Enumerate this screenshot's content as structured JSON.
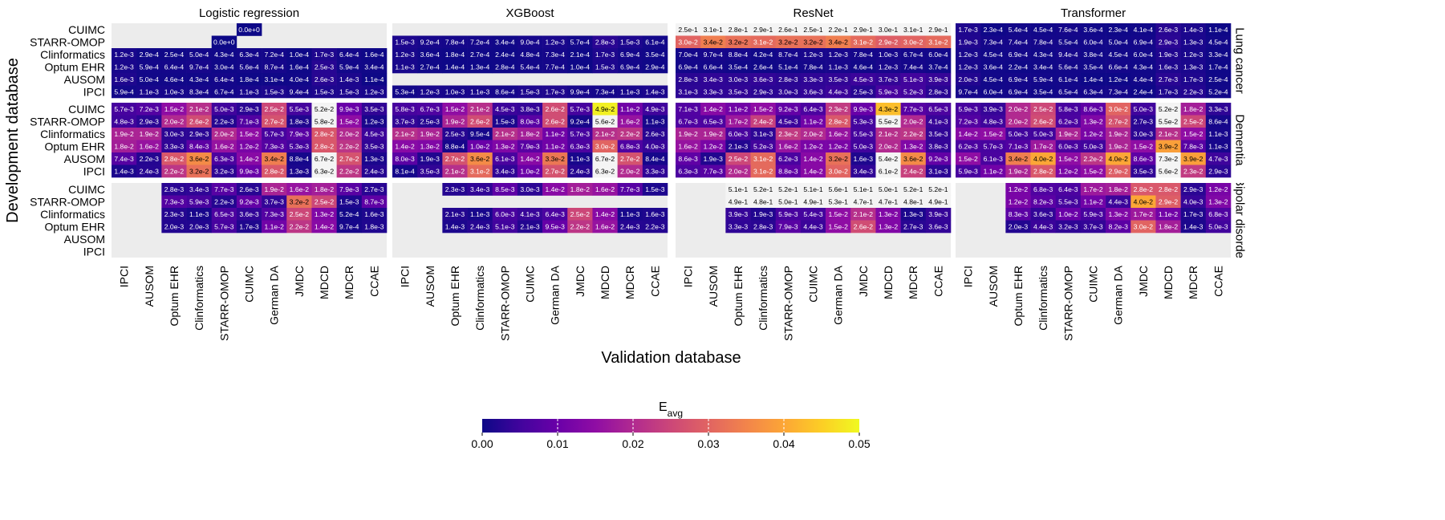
{
  "chart_data": {
    "type": "heatmap",
    "xlabel": "Validation database",
    "ylabel": "Development database",
    "colorbar": {
      "label": "E",
      "label_subscript": "avg",
      "range": [
        0,
        0.05
      ],
      "ticks": [
        "0.00",
        "0.01",
        "0.02",
        "0.03",
        "0.04",
        "0.05"
      ],
      "colormap": "plasma"
    },
    "models": [
      "Logistic regression",
      "XGBoost",
      "ResNet",
      "Transformer"
    ],
    "outcomes": [
      "Lung cancer",
      "Dementia",
      "Bipolar disorder"
    ],
    "development_databases": [
      "CUIMC",
      "STARR-OMOP",
      "Clinformatics",
      "Optum EHR",
      "AUSOM",
      "IPCI"
    ],
    "validation_databases": [
      "IPCI",
      "AUSOM",
      "Optum EHR",
      "Clinformatics",
      "STARR-OMOP",
      "CUIMC",
      "German DA",
      "JMDC",
      "MDCD",
      "MDCR",
      "CCAE"
    ],
    "cells": {
      "Lung cancer": {
        "Logistic regression": [
          [
            null,
            null,
            null,
            null,
            null,
            "0.0e+0",
            null,
            null,
            null,
            null,
            null
          ],
          [
            null,
            null,
            null,
            null,
            "0.0e+0",
            null,
            null,
            null,
            null,
            null,
            null
          ],
          [
            "1.2e-3",
            "2.9e-4",
            "2.5e-4",
            "5.0e-4",
            "4.3e-4",
            "6.3e-4",
            "7.2e-4",
            "1.0e-4",
            "1.7e-3",
            "6.4e-4",
            "1.6e-4"
          ],
          [
            "1.2e-3",
            "5.9e-4",
            "6.4e-4",
            "9.7e-4",
            "3.0e-4",
            "5.6e-4",
            "8.7e-4",
            "1.6e-4",
            "2.5e-3",
            "5.9e-4",
            "3.4e-4"
          ],
          [
            "1.6e-3",
            "5.0e-4",
            "4.6e-4",
            "4.3e-4",
            "6.4e-4",
            "1.8e-4",
            "3.1e-4",
            "4.0e-4",
            "2.6e-3",
            "1.4e-3",
            "1.1e-4"
          ],
          [
            "5.9e-4",
            "1.1e-3",
            "1.0e-3",
            "8.3e-4",
            "6.7e-4",
            "1.1e-3",
            "1.5e-3",
            "9.4e-4",
            "1.5e-3",
            "1.5e-3",
            "1.2e-3"
          ]
        ],
        "XGBoost": [
          [
            null,
            null,
            null,
            null,
            null,
            null,
            null,
            null,
            null,
            null,
            null
          ],
          [
            "1.5e-3",
            "9.2e-4",
            "7.8e-4",
            "7.2e-4",
            "3.4e-4",
            "9.0e-4",
            "1.2e-3",
            "5.7e-4",
            "2.8e-3",
            "1.5e-3",
            "6.1e-4"
          ],
          [
            "1.2e-3",
            "3.6e-4",
            "1.8e-4",
            "2.7e-4",
            "2.4e-4",
            "4.8e-4",
            "7.3e-4",
            "2.1e-4",
            "1.7e-3",
            "6.9e-4",
            "3.5e-4"
          ],
          [
            "1.1e-3",
            "2.7e-4",
            "1.4e-4",
            "1.3e-4",
            "2.8e-4",
            "5.4e-4",
            "7.7e-4",
            "1.0e-4",
            "1.5e-3",
            "6.9e-4",
            "2.9e-4"
          ],
          [
            null,
            null,
            null,
            null,
            null,
            null,
            null,
            null,
            null,
            null,
            null
          ],
          [
            "5.3e-4",
            "1.2e-3",
            "1.0e-3",
            "1.1e-3",
            "8.6e-4",
            "1.5e-3",
            "1.7e-3",
            "9.9e-4",
            "7.3e-4",
            "1.1e-3",
            "1.4e-3"
          ]
        ],
        "ResNet": [
          [
            "2.5e-1",
            "3.1e-1",
            "2.8e-1",
            "2.9e-1",
            "2.6e-1",
            "2.5e-1",
            "2.2e-1",
            "2.9e-1",
            "3.0e-1",
            "3.1e-1",
            "2.9e-1"
          ],
          [
            "3.0e-2",
            "3.4e-2",
            "3.2e-2",
            "3.1e-2",
            "3.2e-2",
            "3.2e-2",
            "3.4e-2",
            "3.1e-2",
            "2.9e-2",
            "3.0e-2",
            "3.1e-2"
          ],
          [
            "7.0e-4",
            "9.7e-4",
            "8.8e-4",
            "4.2e-4",
            "8.7e-4",
            "1.2e-3",
            "1.2e-3",
            "7.8e-4",
            "1.0e-3",
            "6.7e-4",
            "6.0e-4"
          ],
          [
            "6.9e-4",
            "6.6e-4",
            "3.5e-4",
            "2.6e-4",
            "5.1e-4",
            "7.8e-4",
            "1.1e-3",
            "4.6e-4",
            "1.2e-3",
            "7.4e-4",
            "3.7e-4"
          ],
          [
            "2.8e-3",
            "3.4e-3",
            "3.0e-3",
            "3.6e-3",
            "2.8e-3",
            "3.3e-3",
            "3.5e-3",
            "4.5e-3",
            "3.7e-3",
            "5.1e-3",
            "3.9e-3"
          ],
          [
            "3.1e-3",
            "3.3e-3",
            "3.5e-3",
            "2.9e-3",
            "3.0e-3",
            "3.6e-3",
            "4.4e-3",
            "2.5e-3",
            "5.9e-3",
            "5.2e-3",
            "2.8e-3"
          ]
        ],
        "Transformer": [
          [
            "1.7e-3",
            "2.3e-4",
            "5.4e-4",
            "4.5e-4",
            "7.6e-4",
            "3.6e-4",
            "2.3e-4",
            "4.1e-4",
            "2.6e-3",
            "1.4e-3",
            "1.1e-4"
          ],
          [
            "1.9e-3",
            "7.3e-4",
            "7.4e-4",
            "7.8e-4",
            "5.5e-4",
            "6.0e-4",
            "5.0e-4",
            "6.9e-4",
            "2.9e-3",
            "1.3e-3",
            "4.5e-4"
          ],
          [
            "1.2e-3",
            "4.5e-4",
            "6.9e-4",
            "4.3e-4",
            "9.4e-4",
            "3.8e-4",
            "4.5e-4",
            "6.0e-4",
            "1.9e-3",
            "1.2e-3",
            "3.3e-4"
          ],
          [
            "1.2e-3",
            "3.6e-4",
            "2.2e-4",
            "3.4e-4",
            "5.6e-4",
            "3.5e-4",
            "6.6e-4",
            "4.3e-4",
            "1.6e-3",
            "1.3e-3",
            "1.7e-4"
          ],
          [
            "2.0e-3",
            "4.5e-4",
            "6.9e-4",
            "5.9e-4",
            "6.1e-4",
            "1.4e-4",
            "1.2e-4",
            "4.4e-4",
            "2.7e-3",
            "1.7e-3",
            "2.5e-4"
          ],
          [
            "9.7e-4",
            "6.0e-4",
            "6.9e-4",
            "3.5e-4",
            "6.5e-4",
            "6.3e-4",
            "7.3e-4",
            "2.4e-4",
            "1.7e-3",
            "2.2e-3",
            "5.2e-4"
          ]
        ]
      },
      "Dementia": {
        "Logistic regression": [
          [
            "5.7e-3",
            "7.2e-3",
            "1.5e-2",
            "2.1e-2",
            "5.0e-3",
            "2.9e-3",
            "2.5e-2",
            "5.5e-3",
            "5.2e-2",
            "9.9e-3",
            "3.5e-3"
          ],
          [
            "4.8e-3",
            "2.9e-3",
            "2.0e-2",
            "2.6e-2",
            "2.2e-3",
            "7.1e-3",
            "2.7e-2",
            "1.8e-3",
            "5.8e-2",
            "1.5e-2",
            "1.2e-3"
          ],
          [
            "1.9e-2",
            "1.9e-2",
            "3.0e-3",
            "2.9e-3",
            "2.0e-2",
            "1.5e-2",
            "5.7e-3",
            "7.9e-3",
            "2.8e-2",
            "2.0e-2",
            "4.5e-3"
          ],
          [
            "1.8e-2",
            "1.6e-2",
            "3.3e-3",
            "8.4e-3",
            "1.6e-2",
            "1.2e-2",
            "7.3e-3",
            "5.3e-3",
            "2.8e-2",
            "2.2e-2",
            "3.5e-3"
          ],
          [
            "7.4e-3",
            "2.2e-3",
            "2.8e-2",
            "3.6e-2",
            "6.3e-3",
            "1.4e-2",
            "3.4e-2",
            "8.8e-4",
            "6.7e-2",
            "2.7e-2",
            "1.3e-3"
          ],
          [
            "1.4e-3",
            "2.4e-3",
            "2.2e-2",
            "3.2e-2",
            "3.2e-3",
            "9.9e-3",
            "2.8e-2",
            "1.3e-3",
            "6.3e-2",
            "2.2e-2",
            "2.4e-3"
          ]
        ],
        "XGBoost": [
          [
            "5.8e-3",
            "6.7e-3",
            "1.5e-2",
            "2.1e-2",
            "4.5e-3",
            "3.8e-3",
            "2.6e-2",
            "5.7e-3",
            "4.9e-2",
            "1.1e-2",
            "4.9e-3"
          ],
          [
            "3.7e-3",
            "2.5e-3",
            "1.9e-2",
            "2.6e-2",
            "1.5e-3",
            "8.0e-3",
            "2.6e-2",
            "9.2e-4",
            "5.6e-2",
            "1.6e-2",
            "1.1e-3"
          ],
          [
            "2.1e-2",
            "1.9e-2",
            "2.5e-3",
            "9.5e-4",
            "2.1e-2",
            "1.8e-2",
            "1.1e-2",
            "5.7e-3",
            "2.1e-2",
            "2.2e-2",
            "2.6e-3"
          ],
          [
            "1.4e-2",
            "1.3e-2",
            "8.8e-4",
            "1.0e-2",
            "1.3e-2",
            "7.9e-3",
            "1.1e-2",
            "6.3e-3",
            "3.0e-2",
            "6.8e-3",
            "4.0e-3"
          ],
          [
            "8.0e-3",
            "1.9e-3",
            "2.7e-2",
            "3.6e-2",
            "6.1e-3",
            "1.4e-2",
            "3.3e-2",
            "1.1e-3",
            "6.7e-2",
            "2.7e-2",
            "8.4e-4"
          ],
          [
            "8.1e-4",
            "3.5e-3",
            "2.1e-2",
            "3.1e-2",
            "3.4e-3",
            "1.0e-2",
            "2.7e-2",
            "2.4e-3",
            "6.3e-2",
            "2.0e-2",
            "3.3e-3"
          ]
        ],
        "ResNet": [
          [
            "7.1e-3",
            "1.4e-2",
            "1.1e-2",
            "1.5e-2",
            "9.2e-3",
            "6.4e-3",
            "2.3e-2",
            "9.9e-3",
            "4.3e-2",
            "7.7e-3",
            "6.5e-3"
          ],
          [
            "6.7e-3",
            "6.5e-3",
            "1.7e-2",
            "2.4e-2",
            "4.5e-3",
            "1.1e-2",
            "2.8e-2",
            "5.3e-3",
            "5.5e-2",
            "2.0e-2",
            "4.1e-3"
          ],
          [
            "1.9e-2",
            "1.9e-2",
            "6.0e-3",
            "3.1e-3",
            "2.3e-2",
            "2.0e-2",
            "1.6e-2",
            "5.5e-3",
            "2.1e-2",
            "2.2e-2",
            "3.5e-3"
          ],
          [
            "1.6e-2",
            "1.2e-2",
            "2.1e-3",
            "5.2e-3",
            "1.6e-2",
            "1.2e-2",
            "1.2e-2",
            "5.0e-3",
            "2.0e-2",
            "1.3e-2",
            "3.8e-3"
          ],
          [
            "8.6e-3",
            "1.9e-3",
            "2.5e-2",
            "3.1e-2",
            "6.2e-3",
            "1.4e-2",
            "3.2e-2",
            "1.6e-3",
            "5.4e-2",
            "3.6e-2",
            "9.2e-3"
          ],
          [
            "6.3e-3",
            "7.7e-3",
            "2.0e-2",
            "3.1e-2",
            "8.8e-3",
            "1.4e-2",
            "3.0e-2",
            "3.4e-3",
            "6.1e-2",
            "2.4e-2",
            "3.1e-3"
          ]
        ],
        "Transformer": [
          [
            "5.9e-3",
            "3.9e-3",
            "2.0e-2",
            "2.5e-2",
            "5.8e-3",
            "8.6e-3",
            "3.0e-2",
            "5.0e-3",
            "5.2e-2",
            "1.8e-2",
            "3.3e-3"
          ],
          [
            "7.2e-3",
            "4.8e-3",
            "2.0e-2",
            "2.6e-2",
            "6.2e-3",
            "1.3e-2",
            "2.7e-2",
            "2.7e-3",
            "5.5e-2",
            "2.5e-2",
            "8.6e-4"
          ],
          [
            "1.4e-2",
            "1.5e-2",
            "5.0e-3",
            "5.0e-3",
            "1.9e-2",
            "1.2e-2",
            "1.9e-2",
            "3.0e-3",
            "2.1e-2",
            "1.5e-2",
            "1.1e-3"
          ],
          [
            "6.2e-3",
            "5.7e-3",
            "7.1e-3",
            "1.7e-2",
            "6.0e-3",
            "5.0e-3",
            "1.9e-2",
            "1.5e-2",
            "3.9e-2",
            "7.8e-3",
            "1.1e-3"
          ],
          [
            "1.5e-2",
            "6.1e-3",
            "3.4e-2",
            "4.0e-2",
            "1.5e-2",
            "2.2e-2",
            "4.0e-2",
            "8.6e-3",
            "7.3e-2",
            "3.9e-2",
            "4.7e-3"
          ],
          [
            "5.9e-3",
            "1.1e-2",
            "1.9e-2",
            "2.8e-2",
            "1.2e-2",
            "1.5e-2",
            "2.9e-2",
            "3.5e-3",
            "5.6e-2",
            "2.3e-2",
            "2.9e-3"
          ]
        ]
      },
      "Bipolar disorder": {
        "Logistic regression": [
          [
            null,
            null,
            "2.8e-3",
            "3.4e-3",
            "7.7e-3",
            "2.6e-3",
            "1.9e-2",
            "1.6e-2",
            "1.8e-2",
            "7.9e-3",
            "2.7e-3"
          ],
          [
            null,
            null,
            "7.3e-3",
            "5.9e-3",
            "2.2e-3",
            "9.2e-3",
            "3.7e-3",
            "3.2e-2",
            "2.5e-2",
            "1.5e-3",
            "8.7e-3"
          ],
          [
            null,
            null,
            "2.3e-3",
            "1.1e-3",
            "6.5e-3",
            "3.6e-3",
            "7.3e-3",
            "2.5e-2",
            "1.3e-2",
            "5.2e-4",
            "1.6e-3"
          ],
          [
            null,
            null,
            "2.0e-3",
            "2.0e-3",
            "5.7e-3",
            "1.7e-3",
            "1.1e-2",
            "2.2e-2",
            "1.4e-2",
            "9.7e-4",
            "1.8e-3"
          ],
          [
            null,
            null,
            null,
            null,
            null,
            null,
            null,
            null,
            null,
            null,
            null
          ],
          [
            null,
            null,
            null,
            null,
            null,
            null,
            null,
            null,
            null,
            null,
            null
          ]
        ],
        "XGBoost": [
          [
            null,
            null,
            "2.3e-3",
            "3.4e-3",
            "8.5e-3",
            "3.0e-3",
            "1.4e-2",
            "1.8e-2",
            "1.6e-2",
            "7.7e-3",
            "1.5e-3"
          ],
          [
            null,
            null,
            null,
            null,
            null,
            null,
            null,
            null,
            null,
            null,
            null
          ],
          [
            null,
            null,
            "2.1e-3",
            "1.1e-3",
            "6.0e-3",
            "4.1e-3",
            "6.4e-3",
            "2.5e-2",
            "1.4e-2",
            "1.1e-3",
            "1.6e-3"
          ],
          [
            null,
            null,
            "1.4e-3",
            "2.4e-3",
            "5.1e-3",
            "2.1e-3",
            "9.5e-3",
            "2.2e-2",
            "1.6e-2",
            "2.4e-3",
            "2.2e-3"
          ],
          [
            null,
            null,
            null,
            null,
            null,
            null,
            null,
            null,
            null,
            null,
            null
          ],
          [
            null,
            null,
            null,
            null,
            null,
            null,
            null,
            null,
            null,
            null,
            null
          ]
        ],
        "ResNet": [
          [
            null,
            null,
            "5.1e-1",
            "5.2e-1",
            "5.2e-1",
            "5.1e-1",
            "5.6e-1",
            "5.1e-1",
            "5.0e-1",
            "5.2e-1",
            "5.2e-1"
          ],
          [
            null,
            null,
            "4.9e-1",
            "4.8e-1",
            "5.0e-1",
            "4.9e-1",
            "5.3e-1",
            "4.7e-1",
            "4.7e-1",
            "4.8e-1",
            "4.9e-1"
          ],
          [
            null,
            null,
            "3.9e-3",
            "1.9e-3",
            "5.9e-3",
            "5.4e-3",
            "1.5e-2",
            "2.1e-2",
            "1.3e-2",
            "1.3e-3",
            "3.9e-3"
          ],
          [
            null,
            null,
            "3.3e-3",
            "2.8e-3",
            "7.9e-3",
            "4.4e-3",
            "1.5e-2",
            "2.6e-2",
            "1.3e-2",
            "2.7e-3",
            "3.6e-3"
          ],
          [
            null,
            null,
            null,
            null,
            null,
            null,
            null,
            null,
            null,
            null,
            null
          ],
          [
            null,
            null,
            null,
            null,
            null,
            null,
            null,
            null,
            null,
            null,
            null
          ]
        ],
        "Transformer": [
          [
            null,
            null,
            "1.2e-2",
            "6.8e-3",
            "6.4e-3",
            "1.7e-2",
            "1.8e-2",
            "2.8e-2",
            "2.8e-2",
            "2.9e-3",
            "1.2e-2"
          ],
          [
            null,
            null,
            "1.2e-2",
            "8.2e-3",
            "5.5e-3",
            "1.1e-2",
            "4.4e-3",
            "4.0e-2",
            "2.9e-2",
            "4.0e-3",
            "1.3e-2"
          ],
          [
            null,
            null,
            "8.3e-3",
            "3.6e-3",
            "1.0e-2",
            "5.9e-3",
            "1.3e-2",
            "1.7e-2",
            "1.1e-2",
            "1.7e-3",
            "6.8e-3"
          ],
          [
            null,
            null,
            "2.0e-3",
            "4.4e-3",
            "3.2e-3",
            "3.7e-3",
            "8.2e-3",
            "3.0e-2",
            "1.8e-2",
            "1.4e-3",
            "5.0e-3"
          ],
          [
            null,
            null,
            null,
            null,
            null,
            null,
            null,
            null,
            null,
            null,
            null
          ],
          [
            null,
            null,
            null,
            null,
            null,
            null,
            null,
            null,
            null,
            null,
            null
          ]
        ]
      }
    }
  }
}
